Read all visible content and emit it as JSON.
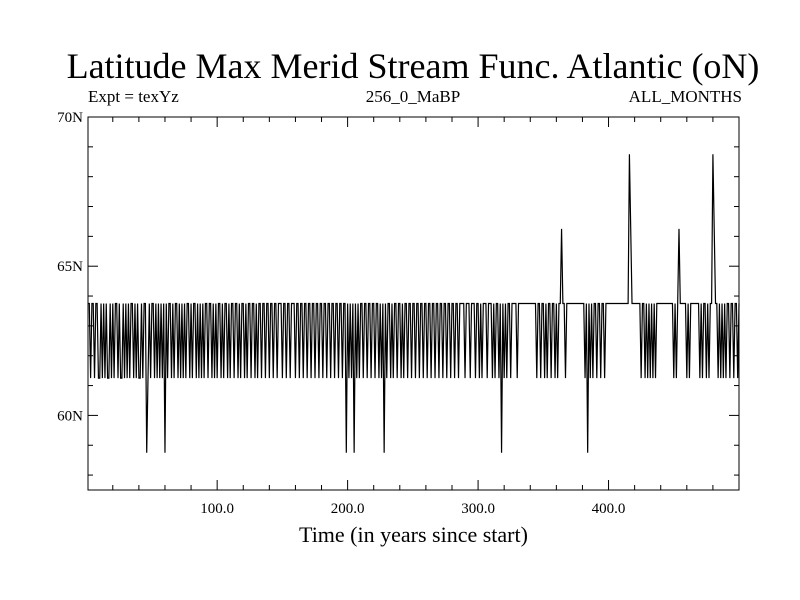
{
  "chart_data": {
    "type": "line",
    "title": "Latitude Max Merid Stream Func. Atlantic (oN)",
    "subtitle_left": "Expt = texYz",
    "subtitle_center": "256_0_MaBP",
    "subtitle_right": "ALL_MONTHS",
    "xlabel": "Time (in years since start)",
    "ylabel": "",
    "xlim": [
      1,
      500
    ],
    "ylim": [
      57.5,
      70
    ],
    "x_ticks": [
      100,
      200,
      300,
      400
    ],
    "x_tick_labels": [
      "100.0",
      "200.0",
      "300.0",
      "400.0"
    ],
    "y_ticks": [
      60,
      65,
      70
    ],
    "y_tick_labels": [
      "60N",
      "65N",
      "70N"
    ],
    "grid": false,
    "series": [
      {
        "x_start": 1,
        "x_step": 1,
        "levels": [
          58.75,
          61.25,
          63.75,
          66.25,
          68.75
        ],
        "baseline": 63.75,
        "events": [
          [
            3,
            61.25
          ],
          [
            6,
            61.25
          ],
          [
            9,
            61.25
          ],
          [
            10,
            61.25
          ],
          [
            12,
            61.25
          ],
          [
            14,
            61.25
          ],
          [
            16,
            61.25
          ],
          [
            17,
            61.25
          ],
          [
            19,
            61.25
          ],
          [
            21,
            61.25
          ],
          [
            24,
            61.25
          ],
          [
            26,
            61.25
          ],
          [
            27,
            61.25
          ],
          [
            29,
            61.25
          ],
          [
            31,
            61.25
          ],
          [
            33,
            61.25
          ],
          [
            36,
            61.25
          ],
          [
            38,
            61.25
          ],
          [
            40,
            61.25
          ],
          [
            41,
            61.25
          ],
          [
            43,
            61.25
          ],
          [
            46,
            58.75
          ],
          [
            47,
            61.25
          ],
          [
            49,
            61.25
          ],
          [
            52,
            61.25
          ],
          [
            54,
            61.25
          ],
          [
            56,
            61.25
          ],
          [
            58,
            61.25
          ],
          [
            60,
            58.75
          ],
          [
            62,
            61.25
          ],
          [
            65,
            61.25
          ],
          [
            67,
            61.25
          ],
          [
            70,
            61.25
          ],
          [
            72,
            61.25
          ],
          [
            74,
            61.25
          ],
          [
            76,
            61.25
          ],
          [
            79,
            61.25
          ],
          [
            81,
            61.25
          ],
          [
            84,
            61.25
          ],
          [
            86,
            61.25
          ],
          [
            88,
            61.25
          ],
          [
            90,
            61.25
          ],
          [
            93,
            61.25
          ],
          [
            96,
            61.25
          ],
          [
            98,
            61.25
          ],
          [
            100,
            61.25
          ],
          [
            103,
            61.25
          ],
          [
            105,
            61.25
          ],
          [
            108,
            61.25
          ],
          [
            110,
            61.25
          ],
          [
            113,
            61.25
          ],
          [
            116,
            61.25
          ],
          [
            118,
            61.25
          ],
          [
            121,
            61.25
          ],
          [
            123,
            61.25
          ],
          [
            126,
            61.25
          ],
          [
            129,
            61.25
          ],
          [
            131,
            61.25
          ],
          [
            134,
            61.25
          ],
          [
            137,
            61.25
          ],
          [
            140,
            61.25
          ],
          [
            143,
            61.25
          ],
          [
            146,
            61.25
          ],
          [
            150,
            61.25
          ],
          [
            153,
            61.25
          ],
          [
            156,
            61.25
          ],
          [
            160,
            61.25
          ],
          [
            163,
            61.25
          ],
          [
            166,
            61.25
          ],
          [
            169,
            61.25
          ],
          [
            172,
            61.25
          ],
          [
            175,
            61.25
          ],
          [
            178,
            61.25
          ],
          [
            181,
            61.25
          ],
          [
            184,
            61.25
          ],
          [
            187,
            61.25
          ],
          [
            190,
            61.25
          ],
          [
            193,
            61.25
          ],
          [
            196,
            61.25
          ],
          [
            199,
            58.75
          ],
          [
            201,
            61.25
          ],
          [
            203,
            61.25
          ],
          [
            205,
            58.75
          ],
          [
            207,
            61.25
          ],
          [
            209,
            61.25
          ],
          [
            212,
            61.25
          ],
          [
            215,
            61.25
          ],
          [
            218,
            61.25
          ],
          [
            221,
            61.25
          ],
          [
            224,
            61.25
          ],
          [
            226,
            61.25
          ],
          [
            228,
            58.75
          ],
          [
            230,
            61.25
          ],
          [
            233,
            61.25
          ],
          [
            235,
            61.25
          ],
          [
            238,
            61.25
          ],
          [
            241,
            61.25
          ],
          [
            243,
            61.25
          ],
          [
            246,
            61.25
          ],
          [
            249,
            61.25
          ],
          [
            252,
            61.25
          ],
          [
            255,
            61.25
          ],
          [
            258,
            61.25
          ],
          [
            261,
            61.25
          ],
          [
            264,
            61.25
          ],
          [
            267,
            61.25
          ],
          [
            270,
            61.25
          ],
          [
            273,
            61.25
          ],
          [
            276,
            61.25
          ],
          [
            279,
            61.25
          ],
          [
            282,
            61.25
          ],
          [
            285,
            61.25
          ],
          [
            290,
            61.25
          ],
          [
            294,
            61.25
          ],
          [
            298,
            61.25
          ],
          [
            301,
            61.25
          ],
          [
            303,
            61.25
          ],
          [
            307,
            61.25
          ],
          [
            311,
            61.25
          ],
          [
            313,
            61.25
          ],
          [
            316,
            61.25
          ],
          [
            318,
            58.75
          ],
          [
            320,
            61.25
          ],
          [
            322,
            61.25
          ],
          [
            325,
            61.25
          ],
          [
            330,
            61.25
          ],
          [
            345,
            61.25
          ],
          [
            348,
            61.25
          ],
          [
            351,
            61.25
          ],
          [
            353,
            61.25
          ],
          [
            356,
            61.25
          ],
          [
            359,
            61.25
          ],
          [
            361,
            61.25
          ],
          [
            364,
            66.25
          ],
          [
            367,
            61.25
          ],
          [
            382,
            61.25
          ],
          [
            384,
            58.75
          ],
          [
            386,
            61.25
          ],
          [
            388,
            61.25
          ],
          [
            391,
            61.25
          ],
          [
            394,
            61.25
          ],
          [
            397,
            61.25
          ],
          [
            416,
            68.75
          ],
          [
            417,
            66.25
          ],
          [
            425,
            61.25
          ],
          [
            428,
            61.25
          ],
          [
            430,
            61.25
          ],
          [
            432,
            61.25
          ],
          [
            434,
            61.25
          ],
          [
            436,
            61.25
          ],
          [
            450,
            61.25
          ],
          [
            452,
            61.25
          ],
          [
            454,
            66.25
          ],
          [
            460,
            61.25
          ],
          [
            462,
            61.25
          ],
          [
            470,
            61.25
          ],
          [
            472,
            61.25
          ],
          [
            475,
            61.25
          ],
          [
            477,
            61.25
          ],
          [
            480,
            68.75
          ],
          [
            481,
            66.25
          ],
          [
            484,
            61.25
          ],
          [
            486,
            61.25
          ],
          [
            488,
            61.25
          ],
          [
            490,
            61.25
          ],
          [
            493,
            61.25
          ],
          [
            496,
            61.25
          ],
          [
            499,
            61.25
          ]
        ]
      }
    ]
  }
}
